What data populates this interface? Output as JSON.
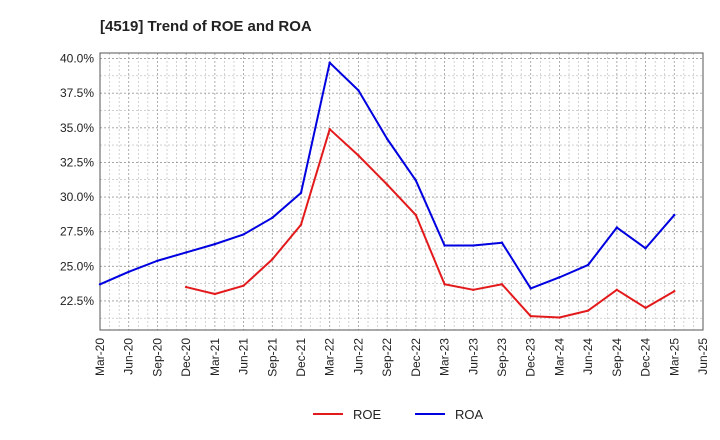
{
  "chart_data": {
    "type": "line",
    "title": "[4519]  Trend of ROE and ROA",
    "categories": [
      "Mar-20",
      "Jun-20",
      "Sep-20",
      "Dec-20",
      "Mar-21",
      "Jun-21",
      "Sep-21",
      "Dec-21",
      "Mar-22",
      "Jun-22",
      "Sep-22",
      "Dec-22",
      "Mar-23",
      "Jun-23",
      "Sep-23",
      "Dec-23",
      "Mar-24",
      "Jun-24",
      "Sep-24",
      "Dec-24",
      "Mar-25",
      "Jun-25"
    ],
    "y_tick_labels": [
      "40.0%",
      "37.5%",
      "35.0%",
      "32.5%",
      "30.0%",
      "27.5%",
      "25.0%",
      "22.5%"
    ],
    "y_ticks": [
      40.0,
      37.5,
      35.0,
      32.5,
      30.0,
      27.5,
      25.0,
      22.5
    ],
    "ylim": [
      20.4,
      40.4
    ],
    "grid": true,
    "legend_position": "bottom-center",
    "series": [
      {
        "name": "ROE",
        "color": "#e31a1c",
        "values": [
          null,
          null,
          null,
          23.5,
          23.0,
          23.6,
          25.5,
          28.0,
          34.9,
          33.0,
          30.9,
          28.7,
          23.7,
          23.3,
          23.7,
          21.4,
          21.3,
          21.8,
          23.3,
          22.0,
          23.2,
          null
        ]
      },
      {
        "name": "ROA",
        "color": "#0000e0",
        "values": [
          23.7,
          24.6,
          25.4,
          26.0,
          26.6,
          27.3,
          28.5,
          30.3,
          39.7,
          37.7,
          34.2,
          31.2,
          26.5,
          26.5,
          26.7,
          23.4,
          24.2,
          25.1,
          27.8,
          26.3,
          28.7,
          null
        ]
      }
    ]
  }
}
